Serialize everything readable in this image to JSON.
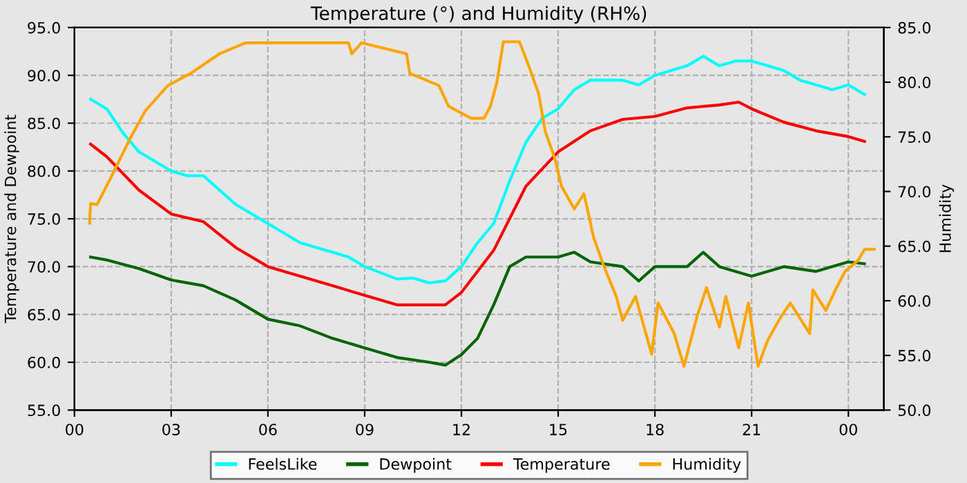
{
  "chart_data": {
    "type": "line",
    "title": "Temperature (°) and Humidity (RH%)",
    "ylabel": "Temperature and Dewpoint",
    "y2label": "Humidity",
    "xlim": [
      0,
      25.1
    ],
    "xticks": [
      {
        "value": 0,
        "label": "00"
      },
      {
        "value": 3,
        "label": "03"
      },
      {
        "value": 6,
        "label": "06"
      },
      {
        "value": 9,
        "label": "09"
      },
      {
        "value": 12,
        "label": "12"
      },
      {
        "value": 15,
        "label": "15"
      },
      {
        "value": 18,
        "label": "18"
      },
      {
        "value": 21,
        "label": "21"
      },
      {
        "value": 24,
        "label": "00"
      }
    ],
    "ylim": [
      55,
      95
    ],
    "yticks": [
      {
        "value": 55,
        "label": "55.0"
      },
      {
        "value": 60,
        "label": "60.0"
      },
      {
        "value": 65,
        "label": "65.0"
      },
      {
        "value": 70,
        "label": "70.0"
      },
      {
        "value": 75,
        "label": "75.0"
      },
      {
        "value": 80,
        "label": "80.0"
      },
      {
        "value": 85,
        "label": "85.0"
      },
      {
        "value": 90,
        "label": "90.0"
      },
      {
        "value": 95,
        "label": "95.0"
      }
    ],
    "y2lim": [
      50,
      85
    ],
    "y2ticks": [
      {
        "value": 50,
        "label": "50.0"
      },
      {
        "value": 55,
        "label": "55.0"
      },
      {
        "value": 60,
        "label": "60.0"
      },
      {
        "value": 65,
        "label": "65.0"
      },
      {
        "value": 70,
        "label": "70.0"
      },
      {
        "value": 75,
        "label": "75.0"
      },
      {
        "value": 80,
        "label": "80.0"
      },
      {
        "value": 85,
        "label": "85.0"
      }
    ],
    "grid": true,
    "legend": "bottom",
    "marker": "none",
    "line_style": "solid",
    "series": [
      {
        "name": "FeelsLike",
        "color": "#00ffff",
        "x": [
          0.5,
          1,
          1.5,
          2,
          3,
          3.5,
          4,
          4.5,
          5,
          6,
          7,
          7.5,
          8,
          8.5,
          9,
          10,
          10.5,
          11,
          11.5,
          12,
          12.5,
          13,
          13.5,
          14,
          14.5,
          15,
          15.5,
          16,
          17,
          17.5,
          18,
          18.5,
          19,
          19.5,
          20,
          20.5,
          21,
          21.5,
          22,
          22.5,
          23,
          23.5,
          24,
          24.5
        ],
        "values": [
          87.5,
          86.5,
          84,
          82,
          80,
          79.5,
          79.5,
          78,
          76.5,
          74.5,
          72.5,
          72,
          71.5,
          71,
          70,
          68.7,
          68.8,
          68.3,
          68.5,
          70,
          72.5,
          74.5,
          79,
          83,
          85.5,
          86.5,
          88.5,
          89.5,
          89.5,
          89,
          90,
          90.5,
          91,
          92,
          91,
          91.5,
          91.5,
          91,
          90.5,
          89.5,
          89,
          88.5,
          89,
          88
        ]
      },
      {
        "name": "Dewpoint",
        "color": "#006400",
        "x": [
          0.5,
          1,
          2,
          3,
          4,
          5,
          6,
          7,
          8,
          9,
          10,
          11,
          11.5,
          12,
          12.5,
          13,
          13.5,
          14,
          15,
          15.5,
          16,
          17,
          17.5,
          18,
          19,
          19.5,
          20,
          21,
          22,
          23,
          24,
          24.5
        ],
        "values": [
          71,
          70.7,
          69.8,
          68.6,
          68,
          66.5,
          64.5,
          63.8,
          62.5,
          61.5,
          60.5,
          60,
          59.7,
          60.8,
          62.5,
          66,
          70,
          71,
          71,
          71.5,
          70.5,
          70,
          68.5,
          70,
          70,
          71.5,
          70,
          69,
          70,
          69.5,
          70.5,
          70.3
        ]
      },
      {
        "name": "Temperature",
        "color": "#ff0000",
        "x": [
          0.5,
          1,
          2,
          3,
          4,
          5,
          6,
          7,
          8,
          9,
          10,
          11,
          11.5,
          12,
          13,
          14,
          15,
          16,
          17,
          18,
          19,
          20,
          20.6,
          21,
          22,
          23,
          24,
          24.5
        ],
        "values": [
          82.8,
          81.5,
          78,
          75.5,
          74.7,
          72,
          70,
          69,
          68,
          67,
          66,
          66,
          66,
          67.3,
          71.7,
          78.4,
          82,
          84.2,
          85.4,
          85.7,
          86.6,
          86.9,
          87.2,
          86.5,
          85.1,
          84.2,
          83.6,
          83.1
        ]
      },
      {
        "name": "Humidity",
        "color": "#ffa500",
        "axis": "y2",
        "x": [
          0.47,
          0.5,
          0.7,
          1.1,
          1.7,
          2.2,
          2.9,
          3.6,
          4.1,
          4.5,
          5.3,
          8.5,
          8.6,
          8.9,
          10.3,
          10.4,
          11.3,
          11.6,
          12.3,
          12.7,
          12.9,
          13.1,
          13.3,
          13.8,
          14.1,
          14.4,
          14.6,
          14.9,
          15.1,
          15.5,
          15.8,
          16.1,
          16.4,
          16.8,
          17,
          17.4,
          17.9,
          18.1,
          18.6,
          18.9,
          19.3,
          19.6,
          20,
          20.2,
          20.6,
          20.9,
          21.2,
          21.5,
          21.9,
          22.2,
          22.8,
          22.9,
          23.3,
          23.6,
          23.9,
          24.3,
          24.5,
          24.8
        ],
        "values": [
          67.1,
          68.9,
          68.8,
          71.1,
          74.7,
          77.4,
          79.7,
          80.8,
          81.8,
          82.6,
          83.6,
          83.6,
          82.6,
          83.6,
          82.6,
          80.8,
          79.7,
          77.8,
          76.7,
          76.7,
          77.8,
          80,
          83.7,
          83.7,
          81.4,
          78.9,
          75.5,
          73,
          70.5,
          68.4,
          69.8,
          65.8,
          63.3,
          60.4,
          58.2,
          60.4,
          55.1,
          59.8,
          57,
          54,
          58.5,
          61.2,
          57.6,
          60.4,
          55.7,
          59.8,
          54,
          56.4,
          58.5,
          59.8,
          57,
          61,
          59.1,
          61,
          62.7,
          63.7,
          64.7,
          64.7
        ]
      }
    ]
  }
}
